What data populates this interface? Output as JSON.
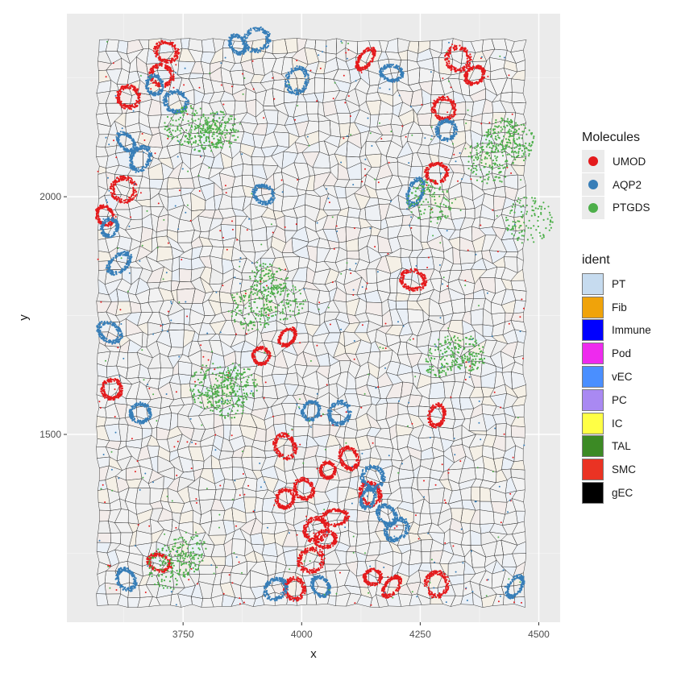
{
  "chart_data": {
    "type": "scatter",
    "xlabel": "x",
    "ylabel": "y",
    "xlim": [
      3505,
      4545
    ],
    "ylim": [
      1105,
      2385
    ],
    "x_ticks": [
      3750,
      4000,
      4250,
      4500
    ],
    "y_ticks": [
      1500,
      2000
    ],
    "grid": true,
    "legend_position": "right",
    "background": "#ebebeb",
    "cell_field": {
      "x_range": [
        3570,
        4470
      ],
      "y_range": [
        1140,
        2330
      ]
    },
    "molecules": {
      "title": "Molecules",
      "series": [
        {
          "name": "UMOD",
          "color": "#e41a1c",
          "clusters": [
            [
              3715,
              2305
            ],
            [
              3705,
              2255
            ],
            [
              3635,
              2210
            ],
            [
              3625,
              2015
            ],
            [
              3585,
              1960
            ],
            [
              3970,
              1705
            ],
            [
              3915,
              1665
            ],
            [
              3600,
              1595
            ],
            [
              3965,
              1475
            ],
            [
              4055,
              1425
            ],
            [
              4100,
              1450
            ],
            [
              4135,
              2290
            ],
            [
              4285,
              2050
            ],
            [
              4330,
              2290
            ],
            [
              4365,
              2255
            ],
            [
              4300,
              2185
            ],
            [
              4285,
              1540
            ],
            [
              4235,
              1825
            ],
            [
              3965,
              1365
            ],
            [
              4005,
              1385
            ],
            [
              4030,
              1300
            ],
            [
              4070,
              1325
            ],
            [
              4050,
              1280
            ],
            [
              4020,
              1235
            ],
            [
              4150,
              1200
            ],
            [
              4190,
              1180
            ],
            [
              4285,
              1185
            ],
            [
              3985,
              1175
            ],
            [
              4145,
              1375
            ],
            [
              3700,
              1230
            ]
          ]
        },
        {
          "name": "AQP2",
          "color": "#377eb8",
          "clusters": [
            [
              3735,
              2200
            ],
            [
              3690,
              2235
            ],
            [
              3630,
              2115
            ],
            [
              3660,
              2080
            ],
            [
              3595,
              1935
            ],
            [
              3615,
              1860
            ],
            [
              3595,
              1715
            ],
            [
              3905,
              2330
            ],
            [
              3865,
              2320
            ],
            [
              3990,
              2245
            ],
            [
              4190,
              2260
            ],
            [
              4305,
              2140
            ],
            [
              3920,
              2005
            ],
            [
              4020,
              1550
            ],
            [
              4080,
              1545
            ],
            [
              4140,
              1365
            ],
            [
              4150,
              1410
            ],
            [
              4180,
              1330
            ],
            [
              4200,
              1300
            ],
            [
              4040,
              1180
            ],
            [
              3945,
              1175
            ],
            [
              3660,
              1545
            ],
            [
              3630,
              1195
            ],
            [
              4240,
              2010
            ],
            [
              4450,
              1180
            ]
          ]
        },
        {
          "name": "PTGDS",
          "color": "#4daf4a",
          "clusters": [
            [
              3795,
              2130
            ],
            [
              3830,
              2140
            ],
            [
              3760,
              2150
            ],
            [
              3930,
              1820
            ],
            [
              3960,
              1780
            ],
            [
              3890,
              1760
            ],
            [
              3840,
              1570
            ],
            [
              3810,
              1600
            ],
            [
              3870,
              1610
            ],
            [
              3760,
              1250
            ],
            [
              3720,
              1220
            ],
            [
              4420,
              2130
            ],
            [
              4390,
              2070
            ],
            [
              4455,
              2110
            ],
            [
              4270,
              1990
            ],
            [
              4300,
              1665
            ],
            [
              4350,
              1670
            ],
            [
              4480,
              1950
            ]
          ]
        }
      ]
    },
    "ident": {
      "title": "ident",
      "entries": [
        {
          "name": "PT",
          "color": "#c6dbef"
        },
        {
          "name": "Fib",
          "color": "#f0a30a"
        },
        {
          "name": "Immune",
          "color": "#0000ff"
        },
        {
          "name": "Pod",
          "color": "#ee2aee"
        },
        {
          "name": "vEC",
          "color": "#4a8fff"
        },
        {
          "name": "PC",
          "color": "#a989f2"
        },
        {
          "name": "IC",
          "color": "#ffff45"
        },
        {
          "name": "TAL",
          "color": "#3c8a25"
        },
        {
          "name": "SMC",
          "color": "#ea3323"
        },
        {
          "name": "gEC",
          "color": "#000000"
        }
      ]
    }
  }
}
